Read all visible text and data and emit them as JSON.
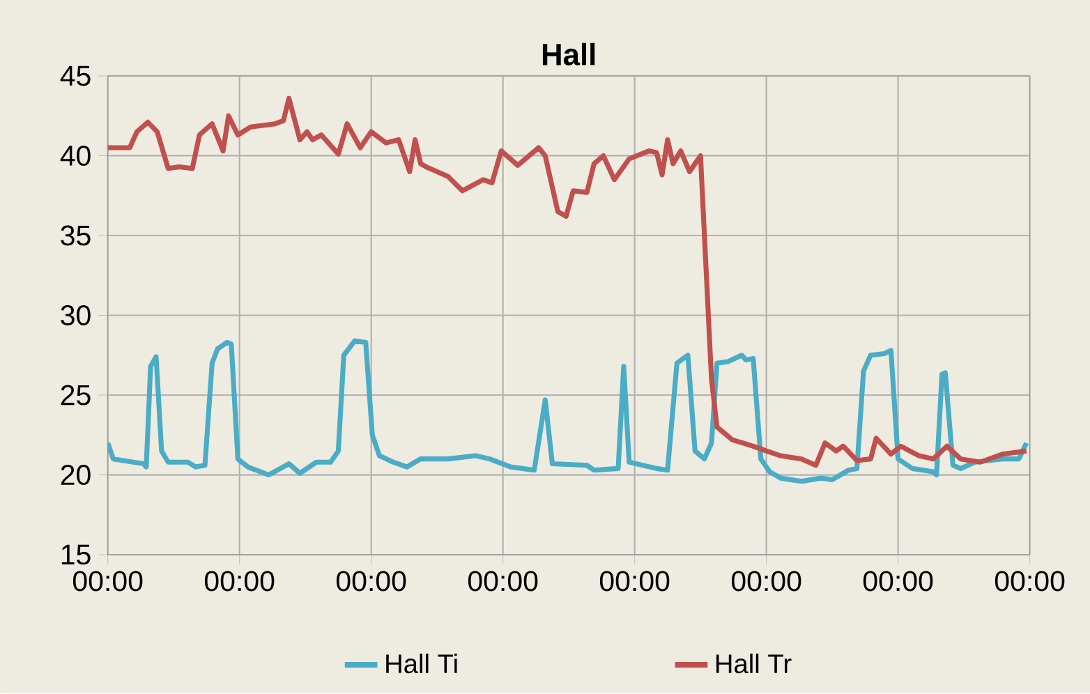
{
  "chart_data": {
    "type": "line",
    "title": "Hall",
    "xlim": [
      "--01-01T00:00",
      "--01-08T00:00"
    ],
    "ylim": [
      15,
      45
    ],
    "yticks": [
      15,
      20,
      25,
      30,
      35,
      40,
      45
    ],
    "xticks": [
      {
        "value": "--01-01T00:00",
        "label": "00:00"
      },
      {
        "value": "--01-02T00:00",
        "label": "00:00"
      },
      {
        "value": "--01-03T00:00",
        "label": "00:00"
      },
      {
        "value": "--01-04T00:00",
        "label": "00:00"
      },
      {
        "value": "--01-05T00:00",
        "label": "00:00"
      },
      {
        "value": "--01-06T00:00",
        "label": "00:00"
      },
      {
        "value": "--01-07T00:00",
        "label": "00:00"
      },
      {
        "value": "--01-08T00:00",
        "label": "00:00"
      }
    ],
    "grid": true,
    "legend": "bottom",
    "marker": "none",
    "line_style": "solid",
    "series": [
      {
        "name": "Hall Ti",
        "color": "#4bacc6",
        "x": [
          "--01-01T00:00",
          "--01-01T01:00",
          "--01-01T06:30",
          "--01-01T07:00",
          "--01-01T07:48",
          "--01-01T08:48",
          "--01-01T09:48",
          "--01-01T11:00",
          "--01-01T14:36",
          "--01-01T16:00",
          "--01-01T17:42",
          "--01-01T19:00",
          "--01-01T20:00",
          "--01-01T21:42",
          "--01-01T22:30",
          "--01-01T23:42",
          "--01-02T01:30",
          "--01-02T05:18",
          "--01-02T09:00",
          "--01-02T11:00",
          "--01-02T14:00",
          "--01-02T16:36",
          "--01-02T18:00",
          "--01-02T19:00",
          "--01-02T21:00",
          "--01-02T23:00",
          "--01-03T00:12",
          "--01-03T01:30",
          "--01-03T04:00",
          "--01-03T06:30",
          "--01-03T09:00",
          "--01-03T14:00",
          "--01-03T19:00",
          "--01-03T21:36",
          "--01-04T01:24",
          "--01-04T05:42",
          "--01-04T07:42",
          "--01-04T09:00",
          "--01-04T15:18",
          "--01-04T16:36",
          "--01-04T21:00",
          "--01-04T22:00",
          "--01-04T23:00",
          "--01-05T04:00",
          "--01-05T06:00",
          "--01-05T07:42",
          "--01-05T09:42",
          "--01-05T11:00",
          "--01-05T12:42",
          "--01-05T14:00",
          "--01-05T15:00",
          "--01-05T17:00",
          "--01-05T19:30",
          "--01-05T20:18",
          "--01-05T21:36",
          "--01-05T23:00",
          "--01-06T00:36",
          "--01-06T02:36",
          "--01-06T06:24",
          "--01-06T10:00",
          "--01-06T12:00",
          "--01-06T15:00",
          "--01-06T16:30",
          "--01-06T17:42",
          "--01-06T19:00",
          "--01-06T21:30",
          "--01-06T22:42",
          "--01-07T00:00",
          "--01-07T02:36",
          "--01-07T06:24",
          "--01-07T07:00",
          "--01-07T08:00",
          "--01-07T08:36",
          "--01-07T10:00",
          "--01-07T11:24",
          "--01-07T14:00",
          "--01-07T19:00",
          "--01-07T22:00",
          "--01-07T23:24"
        ],
        "values": [
          22,
          21,
          20.7,
          20.5,
          26.8,
          27.4,
          21.5,
          20.8,
          20.8,
          20.5,
          20.6,
          27,
          27.9,
          28.3,
          28.2,
          21,
          20.5,
          20,
          20.7,
          20.1,
          20.8,
          20.8,
          21.5,
          27.5,
          28.4,
          28.3,
          22.5,
          21.2,
          20.8,
          20.5,
          21,
          21,
          21.2,
          21,
          20.5,
          20.3,
          24.7,
          20.7,
          20.6,
          20.3,
          20.4,
          26.8,
          20.8,
          20.4,
          20.3,
          27,
          27.5,
          21.5,
          21,
          22,
          27,
          27.1,
          27.5,
          27.2,
          27.3,
          21,
          20.2,
          19.8,
          19.6,
          19.8,
          19.7,
          20.3,
          20.4,
          26.5,
          27.5,
          27.6,
          27.8,
          21,
          20.4,
          20.2,
          20,
          26.3,
          26.4,
          20.6,
          20.4,
          20.8,
          21,
          21,
          22
        ]
      },
      {
        "name": "Hall Tr",
        "color": "#c0504d",
        "x": [
          "--01-01T00:00",
          "--01-01T04:00",
          "--01-01T05:18",
          "--01-01T07:18",
          "--01-01T09:00",
          "--01-01T11:00",
          "--01-01T13:00",
          "--01-01T15:24",
          "--01-01T16:42",
          "--01-01T19:00",
          "--01-01T21:00",
          "--01-01T22:00",
          "--01-01T23:42",
          "--01-02T02:00",
          "--01-02T06:30",
          "--01-02T08:00",
          "--01-02T09:00",
          "--01-02T11:00",
          "--01-02T12:18",
          "--01-02T13:18",
          "--01-02T14:54",
          "--01-02T18:00",
          "--01-02T19:36",
          "--01-02T22:00",
          "--01-03T00:00",
          "--01-03T02:42",
          "--01-03T05:00",
          "--01-03T07:00",
          "--01-03T08:00",
          "--01-03T09:00",
          "--01-03T10:00",
          "--01-03T14:00",
          "--01-03T16:36",
          "--01-03T20:24",
          "--01-03T22:00",
          "--01-03T23:42",
          "--01-04T02:42",
          "--01-04T06:30",
          "--01-04T07:42",
          "--01-04T10:00",
          "--01-04T11:30",
          "--01-04T12:48",
          "--01-04T15:18",
          "--01-04T16:36",
          "--01-04T18:18",
          "--01-04T20:18",
          "--01-04T23:00",
          "--01-05T02:36",
          "--01-05T04:00",
          "--01-05T05:00",
          "--01-05T06:00",
          "--01-05T07:00",
          "--01-05T08:24",
          "--01-05T10:00",
          "--01-05T12:00",
          "--01-05T14:00",
          "--01-05T15:00",
          "--01-05T17:48",
          "--01-05T21:36",
          "--01-06T00:00",
          "--01-06T02:36",
          "--01-06T06:24",
          "--01-06T09:00",
          "--01-06T10:42",
          "--01-06T12:42",
          "--01-06T14:00",
          "--01-06T16:30",
          "--01-06T19:00",
          "--01-06T20:00",
          "--01-06T22:42",
          "--01-07T00:30",
          "--01-07T03:48",
          "--01-07T06:24",
          "--01-07T08:54",
          "--01-07T11:24",
          "--01-07T15:00",
          "--01-07T19:00",
          "--01-07T23:24"
        ],
        "values": [
          40.5,
          40.5,
          41.5,
          42.1,
          41.5,
          39.2,
          39.3,
          39.2,
          41.3,
          42,
          40.3,
          42.5,
          41.3,
          41.8,
          42,
          42.2,
          43.6,
          41,
          41.5,
          41,
          41.3,
          40.1,
          42,
          40.5,
          41.5,
          40.8,
          41,
          39,
          41,
          39.5,
          39.3,
          38.7,
          37.8,
          38.5,
          38.3,
          40.3,
          39.4,
          40.5,
          40,
          36.5,
          36.2,
          37.8,
          37.7,
          39.5,
          40,
          38.5,
          39.8,
          40.3,
          40.2,
          38.8,
          41,
          39.5,
          40.3,
          39,
          40,
          26,
          23,
          22.2,
          21.8,
          21.5,
          21.2,
          21,
          20.6,
          22,
          21.5,
          21.8,
          20.9,
          21,
          22.3,
          21.3,
          21.8,
          21.2,
          21,
          21.8,
          21,
          20.8,
          21.3,
          21.5
        ]
      }
    ]
  }
}
